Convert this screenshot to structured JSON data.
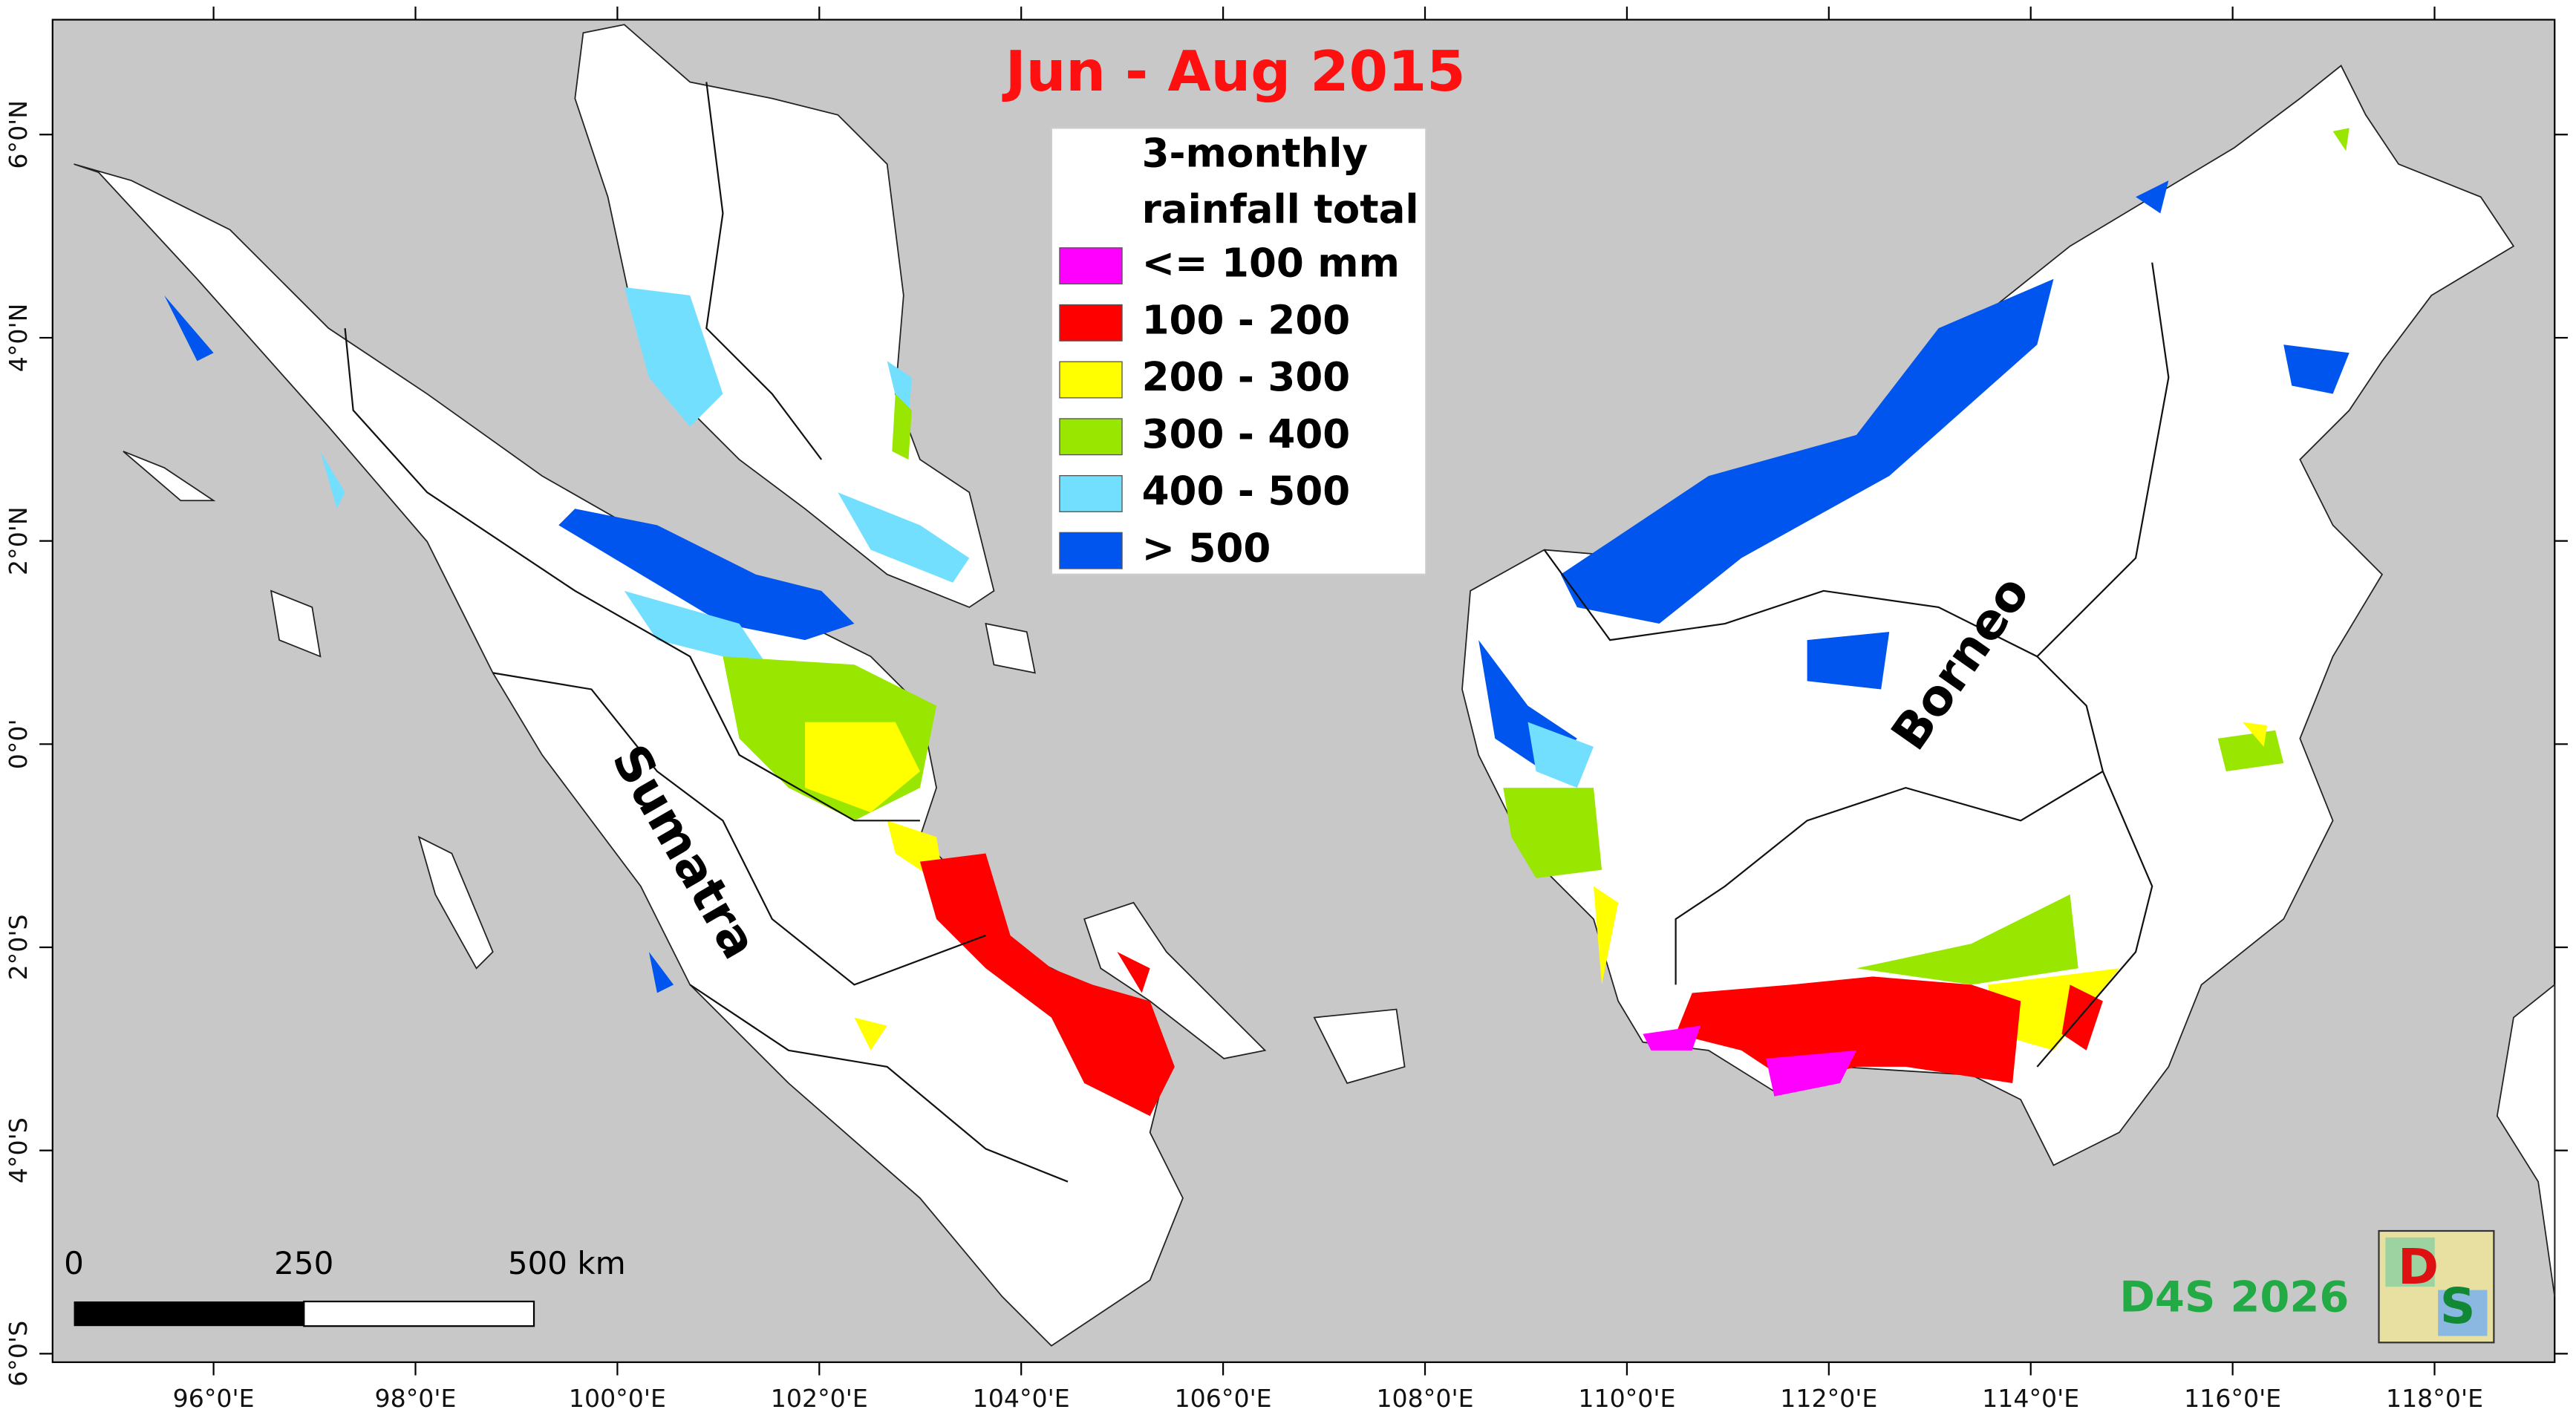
{
  "title": "Jun - Aug 2015",
  "legend": {
    "title_lines": [
      "3-monthly",
      "rainfall total"
    ],
    "items": [
      {
        "label": "<= 100 mm",
        "color": "#ff00ff"
      },
      {
        "label": "100 - 200",
        "color": "#ff0000"
      },
      {
        "label": "200 - 300",
        "color": "#ffff00"
      },
      {
        "label": "300 - 400",
        "color": "#99e600"
      },
      {
        "label": "400 - 500",
        "color": "#73dfff"
      },
      {
        "label": "> 500",
        "color": "#0055ee"
      }
    ]
  },
  "axes": {
    "lon_labels": [
      "96°0'E",
      "98°0'E",
      "100°0'E",
      "102°0'E",
      "104°0'E",
      "106°0'E",
      "108°0'E",
      "110°0'E",
      "112°0'E",
      "114°0'E",
      "116°0'E",
      "118°0'E"
    ],
    "lat_labels": [
      "6°0'N",
      "4°0'N",
      "2°0'N",
      "0°0'",
      "2°0'S",
      "4°0'S",
      "6°0'S"
    ]
  },
  "labels": {
    "sumatra": "Sumatra",
    "borneo": "Borneo"
  },
  "scale_bar": {
    "labels": [
      "0",
      "250",
      "500 km"
    ]
  },
  "credit": "D4S 2026",
  "logo": {
    "letters": [
      "D",
      "S"
    ]
  }
}
